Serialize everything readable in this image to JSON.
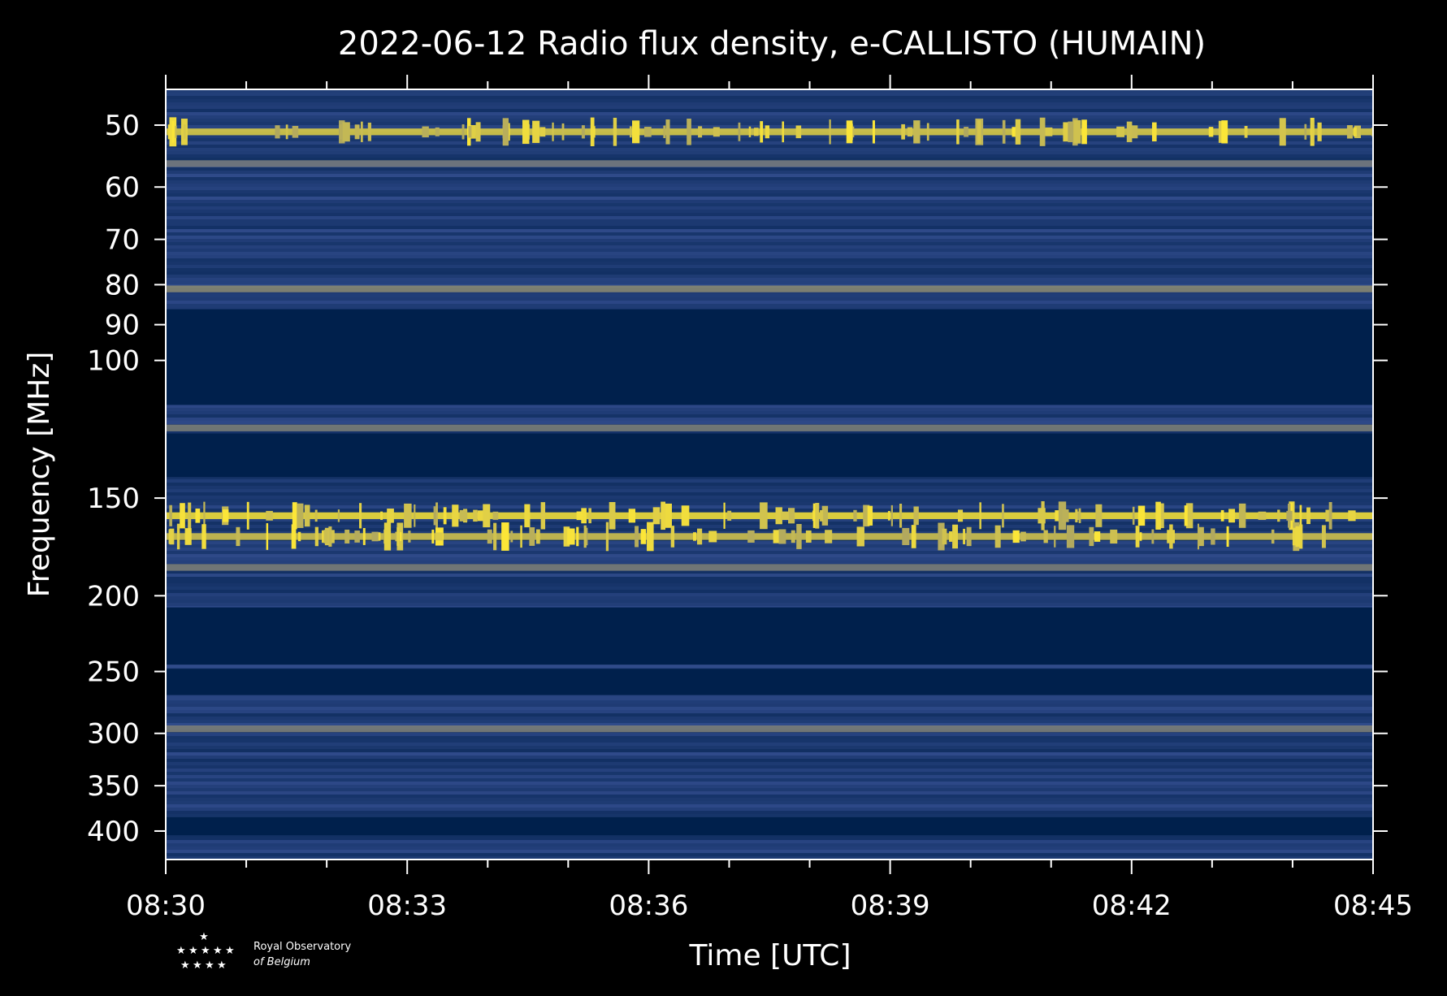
{
  "chart_data": {
    "type": "heatmap",
    "title": "2022-06-12 Radio flux density, e-CALLISTO (HUMAIN)",
    "xlabel": "Time [UTC]",
    "ylabel": "Frequency [MHz]",
    "x_ticks": [
      "08:30",
      "08:33",
      "08:36",
      "08:39",
      "08:42",
      "08:45"
    ],
    "x_range_minutes": [
      0,
      15
    ],
    "y_scale": "log",
    "y_range": [
      45,
      435
    ],
    "y_ticks": [
      "50",
      "60",
      "70",
      "80",
      "90",
      "100",
      "150",
      "200",
      "250",
      "300",
      "350",
      "400"
    ],
    "colormap": [
      "#00204c",
      "#2f4a8a",
      "#7d7e79",
      "#fde737"
    ],
    "bright_bands_mhz": [
      {
        "freq": 51,
        "intensity": 0.9
      },
      {
        "freq": 56,
        "intensity": 0.45
      },
      {
        "freq": 81,
        "intensity": 0.55
      },
      {
        "freq": 122,
        "intensity": 0.5
      },
      {
        "freq": 158,
        "intensity": 1.0
      },
      {
        "freq": 168,
        "intensity": 0.85
      },
      {
        "freq": 184,
        "intensity": 0.5
      },
      {
        "freq": 296,
        "intensity": 0.5
      }
    ],
    "masked_bands_mhz": [
      [
        86,
        114
      ],
      [
        124,
        141
      ],
      [
        207,
        245
      ],
      [
        248,
        268
      ],
      [
        384,
        405
      ]
    ]
  },
  "logo": {
    "line1": "Royal Observatory",
    "line2": "of Belgium"
  }
}
